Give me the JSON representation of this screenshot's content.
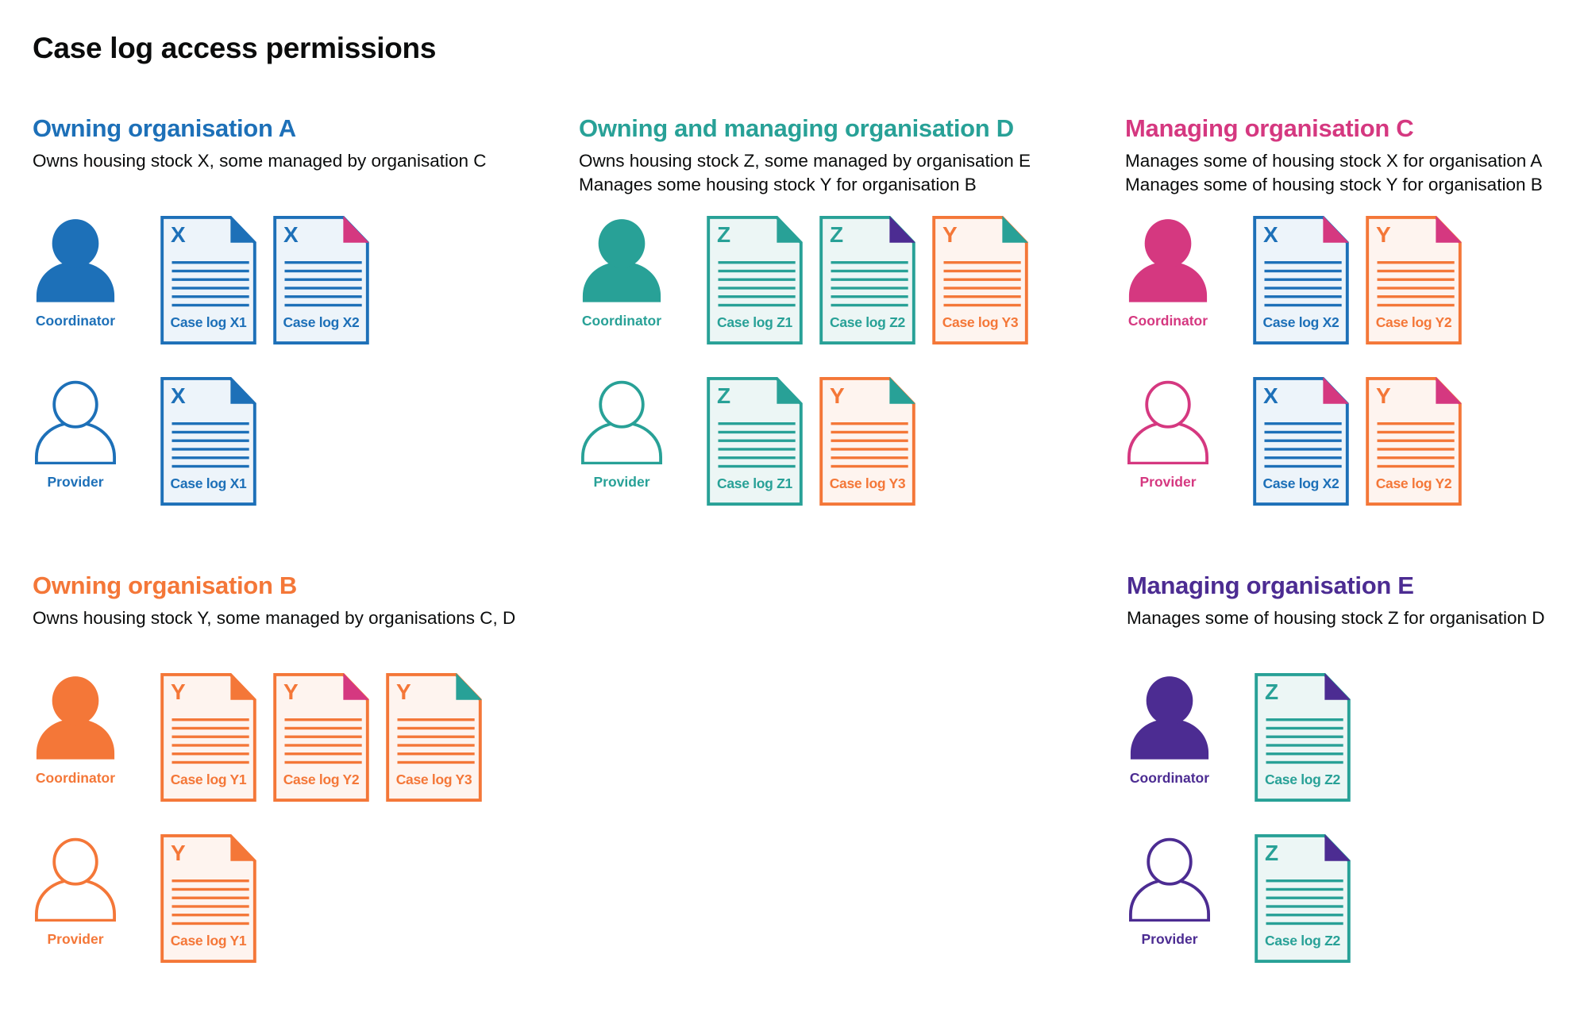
{
  "title": "Case log access permissions",
  "colors": {
    "blue": "#1d70b8",
    "teal": "#28a197",
    "pink": "#d53880",
    "orange": "#f47738",
    "purple": "#4c2c92"
  },
  "tints": {
    "blue": "#edf4fa",
    "teal": "#ecf6f5",
    "orange": "#fef4ef"
  },
  "organisations": [
    {
      "id": "a",
      "heading": "Owning organisation A",
      "color": "blue",
      "description": [
        "Owns housing stock X, some managed by organisation C"
      ],
      "roles": [
        {
          "label": "Coordinator",
          "filled": true,
          "docs": [
            {
              "letter": "X",
              "label": "Case log X1",
              "color": "blue",
              "corner": "blue"
            },
            {
              "letter": "X",
              "label": "Case log X2",
              "color": "blue",
              "corner": "pink"
            }
          ]
        },
        {
          "label": "Provider",
          "filled": false,
          "docs": [
            {
              "letter": "X",
              "label": "Case log X1",
              "color": "blue",
              "corner": "blue"
            }
          ]
        }
      ]
    },
    {
      "id": "d",
      "heading": "Owning and managing organisation D",
      "color": "teal",
      "description": [
        "Owns housing stock Z, some managed by organisation E",
        "Manages some housing stock Y for organisation B"
      ],
      "roles": [
        {
          "label": "Coordinator",
          "filled": true,
          "docs": [
            {
              "letter": "Z",
              "label": "Case log Z1",
              "color": "teal",
              "corner": "teal"
            },
            {
              "letter": "Z",
              "label": "Case log Z2",
              "color": "teal",
              "corner": "purple"
            },
            {
              "letter": "Y",
              "label": "Case log Y3",
              "color": "orange",
              "corner": "teal"
            }
          ]
        },
        {
          "label": "Provider",
          "filled": false,
          "docs": [
            {
              "letter": "Z",
              "label": "Case log Z1",
              "color": "teal",
              "corner": "teal"
            },
            {
              "letter": "Y",
              "label": "Case log Y3",
              "color": "orange",
              "corner": "teal"
            }
          ]
        }
      ]
    },
    {
      "id": "c",
      "heading": "Managing organisation C",
      "color": "pink",
      "description": [
        "Manages some of housing stock X for organisation A",
        "Manages some of housing stock Y for organisation B"
      ],
      "roles": [
        {
          "label": "Coordinator",
          "filled": true,
          "docs": [
            {
              "letter": "X",
              "label": "Case log X2",
              "color": "blue",
              "corner": "pink"
            },
            {
              "letter": "Y",
              "label": "Case log Y2",
              "color": "orange",
              "corner": "pink"
            }
          ]
        },
        {
          "label": "Provider",
          "filled": false,
          "docs": [
            {
              "letter": "X",
              "label": "Case log X2",
              "color": "blue",
              "corner": "pink"
            },
            {
              "letter": "Y",
              "label": "Case log Y2",
              "color": "orange",
              "corner": "pink"
            }
          ]
        }
      ]
    },
    {
      "id": "b",
      "heading": "Owning organisation B",
      "color": "orange",
      "description": [
        "Owns housing stock Y, some managed by organisations C, D"
      ],
      "roles": [
        {
          "label": "Coordinator",
          "filled": true,
          "docs": [
            {
              "letter": "Y",
              "label": "Case log Y1",
              "color": "orange",
              "corner": "orange"
            },
            {
              "letter": "Y",
              "label": "Case log Y2",
              "color": "orange",
              "corner": "pink"
            },
            {
              "letter": "Y",
              "label": "Case log Y3",
              "color": "orange",
              "corner": "teal"
            }
          ]
        },
        {
          "label": "Provider",
          "filled": false,
          "docs": [
            {
              "letter": "Y",
              "label": "Case log Y1",
              "color": "orange",
              "corner": "orange"
            }
          ]
        }
      ]
    },
    {
      "id": "e",
      "heading": "Managing organisation E",
      "color": "purple",
      "description": [
        "Manages some of housing stock Z for organisation D"
      ],
      "roles": [
        {
          "label": "Coordinator",
          "filled": true,
          "docs": [
            {
              "letter": "Z",
              "label": "Case log Z2",
              "color": "teal",
              "corner": "purple"
            }
          ]
        },
        {
          "label": "Provider",
          "filled": false,
          "docs": [
            {
              "letter": "Z",
              "label": "Case log Z2",
              "color": "teal",
              "corner": "purple"
            }
          ]
        }
      ]
    }
  ]
}
